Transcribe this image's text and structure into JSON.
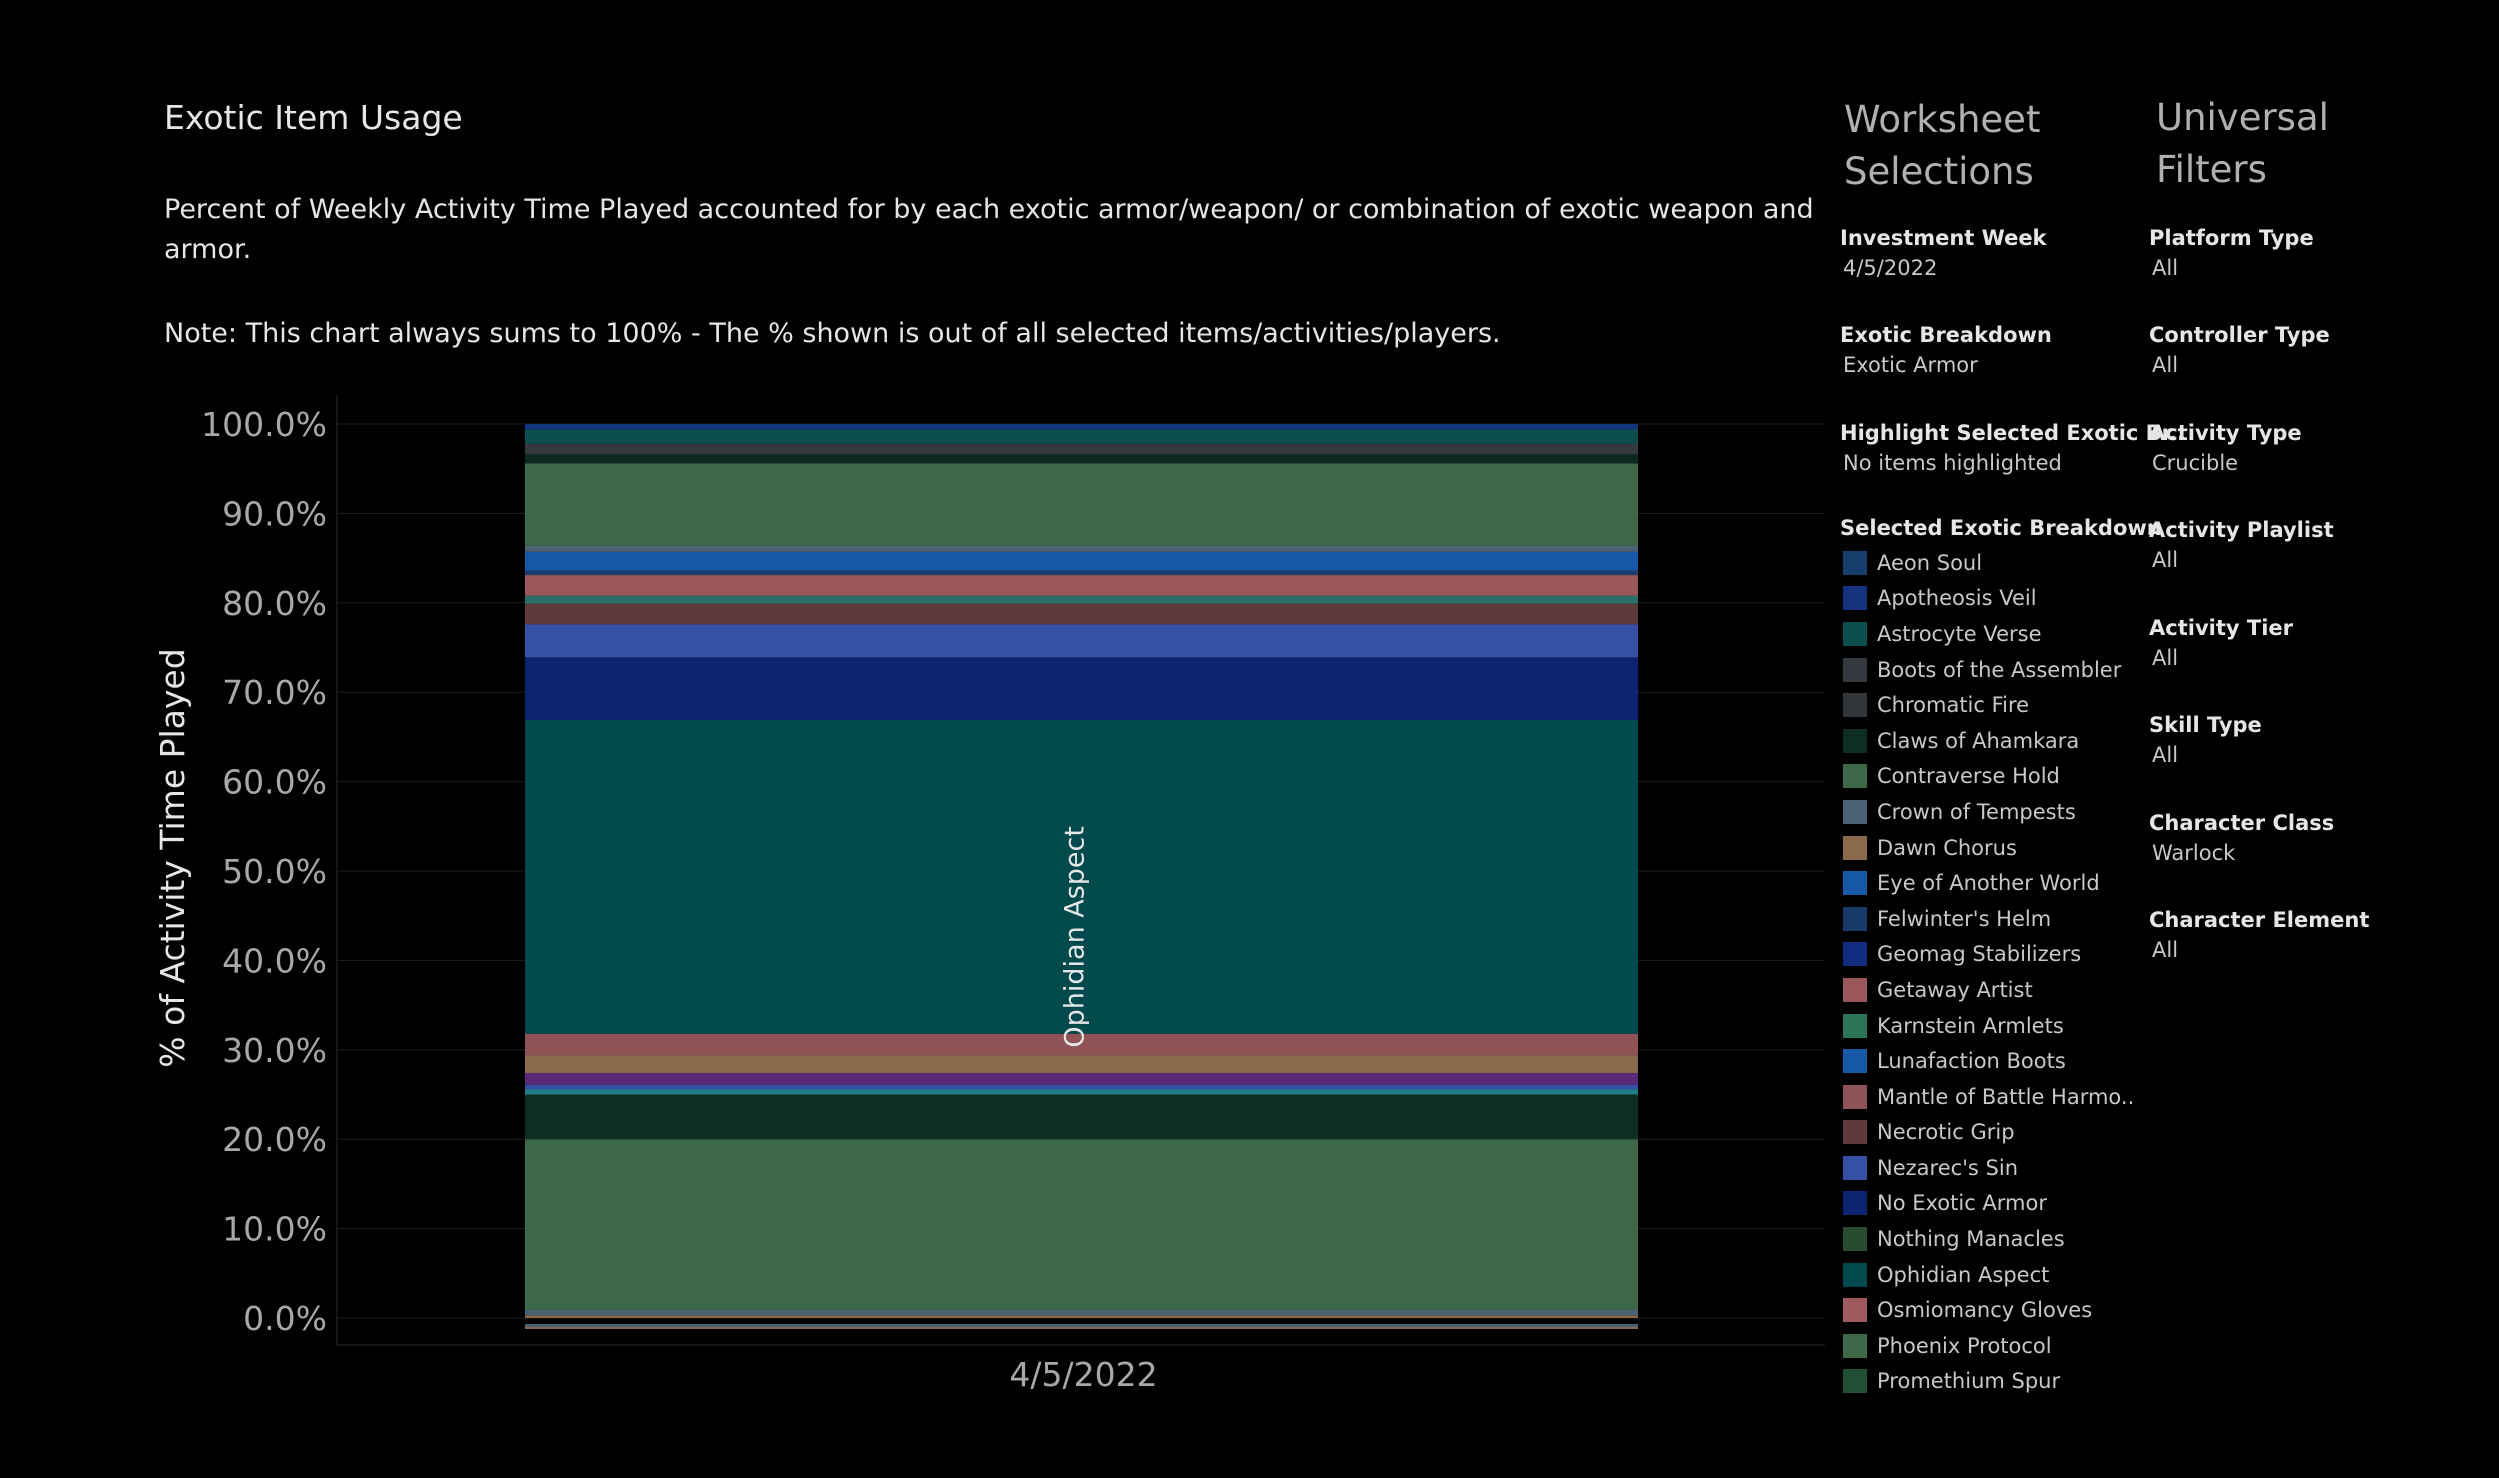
{
  "header": {
    "title": "Exotic Item Usage",
    "description": "Percent of Weekly Activity Time Played accounted for by each exotic armor/weapon/ or combination of exotic weapon and armor.",
    "note": "Note: This chart always sums to 100% - The % shown is out of all selected items/activities/players."
  },
  "worksheet": {
    "heading": "Worksheet Selections",
    "items": [
      {
        "label": "Investment Week",
        "value": "4/5/2022"
      },
      {
        "label": "Exotic Breakdown",
        "value": "Exotic Armor"
      },
      {
        "label": "Highlight Selected Exotic Br..",
        "value": "No items highlighted"
      }
    ],
    "legend_title": "Selected Exotic Breakdown"
  },
  "universal": {
    "heading": "Universal Filters",
    "items": [
      {
        "label": "Platform Type",
        "value": "All"
      },
      {
        "label": "Controller Type",
        "value": "All"
      },
      {
        "label": "Activity Type",
        "value": "Crucible"
      },
      {
        "label": "Activity Playlist",
        "value": "All"
      },
      {
        "label": "Activity Tier",
        "value": "All"
      },
      {
        "label": "Skill Type",
        "value": "All"
      },
      {
        "label": "Character Class",
        "value": "Warlock"
      },
      {
        "label": "Character Element",
        "value": "All"
      }
    ]
  },
  "legend": [
    {
      "label": "Aeon Soul",
      "color": "#173f6b"
    },
    {
      "label": "Apotheosis Veil",
      "color": "#13337f"
    },
    {
      "label": "Astrocyte Verse",
      "color": "#0d4f4f"
    },
    {
      "label": "Boots of the Assembler",
      "color": "#33393e"
    },
    {
      "label": "Chromatic Fire",
      "color": "#2f3539"
    },
    {
      "label": "Claws of Ahamkara",
      "color": "#0e2e24"
    },
    {
      "label": "Contraverse Hold",
      "color": "#3c6848"
    },
    {
      "label": "Crown of Tempests",
      "color": "#4b6275"
    },
    {
      "label": "Dawn Chorus",
      "color": "#8a6a4a"
    },
    {
      "label": "Eye of Another World",
      "color": "#1658a8"
    },
    {
      "label": "Felwinter's Helm",
      "color": "#163a68"
    },
    {
      "label": "Geomag Stabilizers",
      "color": "#122c80"
    },
    {
      "label": "Getaway Artist",
      "color": "#9a575a"
    },
    {
      "label": "Karnstein Armlets",
      "color": "#2c7457"
    },
    {
      "label": "Lunafaction Boots",
      "color": "#1658a8"
    },
    {
      "label": "Mantle of Battle Harmo..",
      "color": "#8f5355"
    },
    {
      "label": "Necrotic Grip",
      "color": "#5e3a3c"
    },
    {
      "label": "Nezarec's Sin",
      "color": "#3550a5"
    },
    {
      "label": "No Exotic Armor",
      "color": "#0d2472"
    },
    {
      "label": "Nothing Manacles",
      "color": "#284a30"
    },
    {
      "label": "Ophidian Aspect",
      "color": "#004a4e"
    },
    {
      "label": "Osmiomancy Gloves",
      "color": "#a05a5e"
    },
    {
      "label": "Phoenix Protocol",
      "color": "#3c6848"
    },
    {
      "label": "Promethium Spur",
      "color": "#1f4f34"
    }
  ],
  "chart_data": {
    "type": "bar",
    "stacked": true,
    "categories": [
      "4/5/2022"
    ],
    "ylabel": "% of Activity Time Played",
    "ylim": [
      0,
      100
    ],
    "yticks": [
      "0.0%",
      "10.0%",
      "20.0%",
      "30.0%",
      "40.0%",
      "50.0%",
      "60.0%",
      "70.0%",
      "80.0%",
      "90.0%",
      "100.0%"
    ],
    "mark_label": "Ophidian Aspect",
    "segments": [
      {
        "color": "#8a6a4a",
        "from": 0.0,
        "to": 0.3
      },
      {
        "color": "#4b6275",
        "from": 0.3,
        "to": 0.9
      },
      {
        "color": "#3c6848",
        "from": 0.9,
        "to": 20.0
      },
      {
        "color": "#0e2e24",
        "from": 20.0,
        "to": 25.0
      },
      {
        "color": "#1f7d8a",
        "from": 25.0,
        "to": 25.6
      },
      {
        "color": "#3550a5",
        "from": 25.6,
        "to": 26.1
      },
      {
        "color": "#5b2a7a",
        "from": 26.1,
        "to": 27.4
      },
      {
        "color": "#8a6a4a",
        "from": 27.4,
        "to": 29.4
      },
      {
        "color": "#8f5355",
        "from": 29.4,
        "to": 31.8
      },
      {
        "color": "#004a4e",
        "from": 31.8,
        "to": 66.9,
        "name": "Ophidian Aspect"
      },
      {
        "color": "#0d2472",
        "from": 66.9,
        "to": 73.9
      },
      {
        "color": "#3550a5",
        "from": 73.9,
        "to": 77.6
      },
      {
        "color": "#5e3a3c",
        "from": 77.6,
        "to": 79.9
      },
      {
        "color": "#2c6e68",
        "from": 79.9,
        "to": 80.8
      },
      {
        "color": "#9a575a",
        "from": 80.8,
        "to": 83.1
      },
      {
        "color": "#1c3d70",
        "from": 83.1,
        "to": 83.6
      },
      {
        "color": "#1658a8",
        "from": 83.6,
        "to": 85.7
      },
      {
        "color": "#4b6275",
        "from": 85.7,
        "to": 86.4
      },
      {
        "color": "#3c6848",
        "from": 86.4,
        "to": 95.6
      },
      {
        "color": "#0d2a20",
        "from": 95.6,
        "to": 96.6
      },
      {
        "color": "#33393e",
        "from": 96.6,
        "to": 97.8
      },
      {
        "color": "#0d4f4f",
        "from": 97.8,
        "to": 99.4
      },
      {
        "color": "#13337f",
        "from": 99.4,
        "to": 100.0
      }
    ]
  }
}
